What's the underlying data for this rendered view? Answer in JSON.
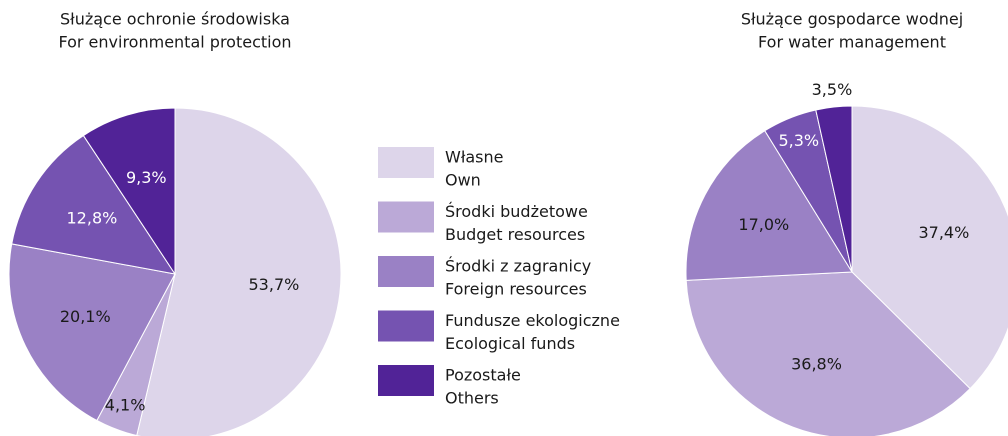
{
  "chart_data": [
    {
      "type": "pie",
      "title": "Służące ochronie środowiska",
      "subtitle": "For environmental protection",
      "categories": [
        "Własne",
        "Środki budżetowe",
        "Środki z zagranicy",
        "Fundusze ekologiczne",
        "Pozostałe"
      ],
      "values": [
        53.7,
        4.1,
        20.1,
        12.8,
        9.3
      ],
      "value_labels": [
        "53,7%",
        "4,1%",
        "20,1%",
        "12,8%",
        "9,3%"
      ],
      "colors": [
        "#ddd5ea",
        "#bba9d7",
        "#9a81c5",
        "#7553b1",
        "#512397"
      ]
    },
    {
      "type": "pie",
      "title": "Służące gospodarce wodnej",
      "subtitle": "For water management",
      "categories": [
        "Własne",
        "Środki budżetowe",
        "Środki z zagranicy",
        "Fundusze ekologiczne",
        "Pozostałe"
      ],
      "values": [
        37.4,
        36.8,
        17.0,
        5.3,
        3.5
      ],
      "value_labels": [
        "37,4%",
        "36,8%",
        "17,0%",
        "5,3%",
        "3,5%"
      ],
      "colors": [
        "#ddd5ea",
        "#bba9d7",
        "#9a81c5",
        "#7553b1",
        "#512397"
      ]
    }
  ],
  "legend": {
    "entries": [
      {
        "label": "Własne",
        "sublabel": "Own"
      },
      {
        "label": "Środki budżetowe",
        "sublabel": "Budget resources"
      },
      {
        "label": "Środki z zagranicy",
        "sublabel": "Foreign resources"
      },
      {
        "label": "Fundusze ekologiczne",
        "sublabel": "Ecological funds"
      },
      {
        "label": "Pozostałe",
        "sublabel": "Others"
      }
    ]
  }
}
